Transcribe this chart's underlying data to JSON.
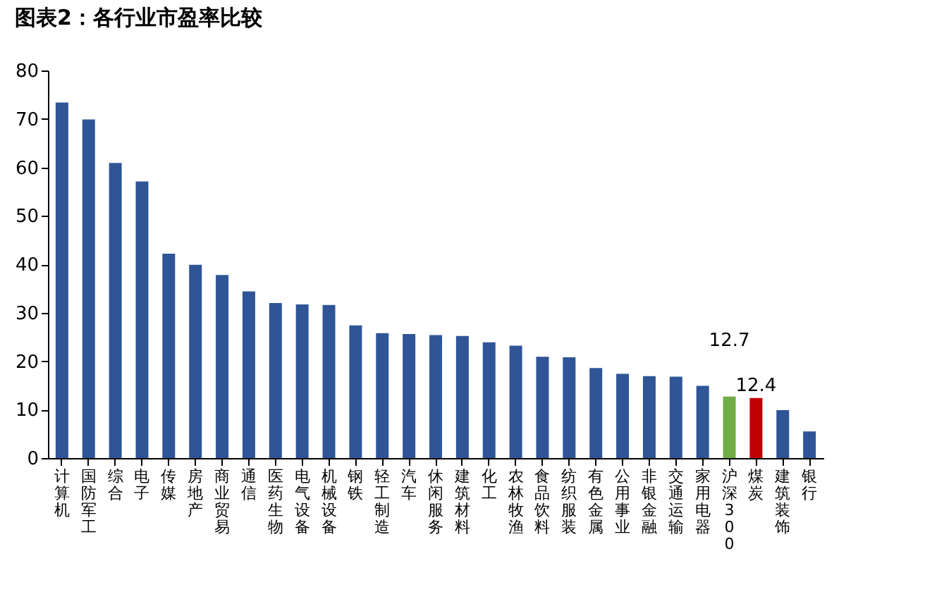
{
  "chart_data": {
    "type": "bar",
    "title": "图表2：各行业市盈率比较",
    "categories": [
      "计算机",
      "国防军工",
      "综合",
      "电子",
      "传媒",
      "房地产",
      "商业贸易",
      "通信",
      "医药生物",
      "电气设备",
      "机械设备",
      "钢铁",
      "轻工制造",
      "汽车",
      "休闲服务",
      "建筑材料",
      "化工",
      "农林牧渔",
      "食品饮料",
      "纺织服装",
      "有色金属",
      "公用事业",
      "非银金融",
      "交通运输",
      "家用电器",
      "沪深300",
      "煤炭",
      "建筑装饰",
      "银行"
    ],
    "values": [
      73.4,
      69.9,
      60.9,
      57.1,
      42.2,
      39.9,
      37.8,
      34.4,
      32.0,
      31.7,
      31.6,
      27.4,
      25.8,
      25.6,
      25.4,
      25.2,
      23.9,
      23.2,
      20.9,
      20.8,
      18.6,
      17.4,
      16.9,
      16.8,
      14.9,
      12.7,
      12.4,
      9.9,
      5.5
    ],
    "colors": [
      "#2f5597",
      "#2f5597",
      "#2f5597",
      "#2f5597",
      "#2f5597",
      "#2f5597",
      "#2f5597",
      "#2f5597",
      "#2f5597",
      "#2f5597",
      "#2f5597",
      "#2f5597",
      "#2f5597",
      "#2f5597",
      "#2f5597",
      "#2f5597",
      "#2f5597",
      "#2f5597",
      "#2f5597",
      "#2f5597",
      "#2f5597",
      "#2f5597",
      "#2f5597",
      "#2f5597",
      "#2f5597",
      "#70ad47",
      "#c00000",
      "#2f5597",
      "#2f5597"
    ],
    "value_labels": [
      null,
      null,
      null,
      null,
      null,
      null,
      null,
      null,
      null,
      null,
      null,
      null,
      null,
      null,
      null,
      null,
      null,
      null,
      null,
      null,
      null,
      null,
      null,
      null,
      null,
      "12.7",
      "12.4",
      null,
      null
    ],
    "ylim": [
      0,
      80
    ],
    "yticks": [
      0,
      10,
      20,
      30,
      40,
      50,
      60,
      70,
      80
    ],
    "grid": false
  }
}
